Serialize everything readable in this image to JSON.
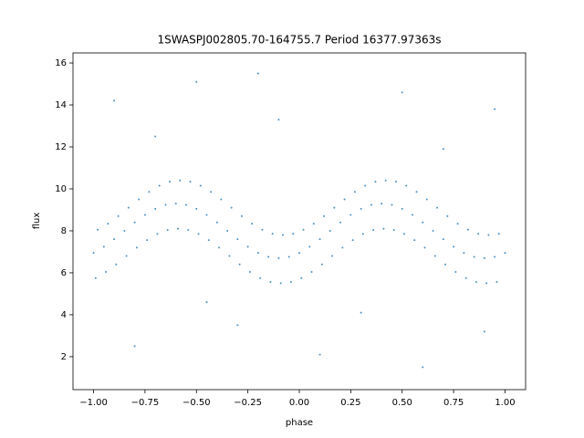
{
  "chart_data": {
    "type": "scatter",
    "title": "1SWASPJ002805.70-164755.7 Period 16377.97363s",
    "xlabel": "phase",
    "ylabel": "flux",
    "color": "#1f77b4",
    "xlim": [
      -1.1,
      1.1
    ],
    "ylim": [
      0.43,
      16.48
    ],
    "xticks": [
      {
        "value": -1,
        "label": "−1.00"
      },
      {
        "value": -0.75,
        "label": "−0.75"
      },
      {
        "value": -0.5,
        "label": "−0.50"
      },
      {
        "value": -0.25,
        "label": "−0.25"
      },
      {
        "value": 0,
        "label": "0.00"
      },
      {
        "value": 0.25,
        "label": "0.25"
      },
      {
        "value": 0.5,
        "label": "0.50"
      },
      {
        "value": 0.75,
        "label": "0.75"
      },
      {
        "value": 1,
        "label": "1.00"
      }
    ],
    "yticks": [
      2,
      4,
      6,
      8,
      10,
      12,
      14,
      16
    ],
    "x": [
      -1,
      -0.95,
      -0.9,
      -0.85,
      -0.8,
      -0.75,
      -0.7,
      -0.65,
      -0.6,
      -0.55,
      -0.5,
      -0.45,
      -0.4,
      -0.35,
      -0.3,
      -0.25,
      -0.2,
      -0.15,
      -0.1,
      -0.05,
      0,
      0.05,
      0.1,
      0.15,
      0.2,
      0.25,
      0.3,
      0.35,
      0.4,
      0.45,
      0.5,
      0.55,
      0.6,
      0.65,
      0.7,
      0.75,
      0.8,
      0.85,
      0.9,
      0.95,
      1,
      -0.98,
      -0.93,
      -0.88,
      -0.83,
      -0.78,
      -0.73,
      -0.68,
      -0.63,
      -0.58,
      -0.53,
      -0.48,
      -0.43,
      -0.38,
      -0.33,
      -0.28,
      -0.23,
      -0.18,
      -0.13,
      -0.08,
      -0.03,
      0.02,
      0.07,
      0.12,
      0.17,
      0.22,
      0.27,
      0.32,
      0.37,
      0.42,
      0.47,
      0.52,
      0.57,
      0.62,
      0.67,
      0.72,
      0.77,
      0.82,
      0.87,
      0.92,
      0.97,
      -0.99,
      -0.94,
      -0.89,
      -0.84,
      -0.79,
      -0.74,
      -0.69,
      -0.64,
      -0.59,
      -0.54,
      -0.49,
      -0.44,
      -0.39,
      -0.34,
      -0.29,
      -0.24,
      -0.19,
      -0.14,
      -0.09,
      -0.04,
      0.01,
      0.06,
      0.11,
      0.16,
      0.21,
      0.26,
      0.31,
      0.36,
      0.41,
      0.46,
      0.51,
      0.56,
      0.61,
      0.66,
      0.71,
      0.76,
      0.81,
      0.86,
      0.91,
      0.96,
      -0.9,
      -0.7,
      -0.5,
      -0.3,
      -0.1,
      0.1,
      0.3,
      0.5,
      0.7,
      0.9,
      -0.8,
      0.6,
      -0.2,
      0.95,
      -0.45
    ],
    "y": [
      6.95,
      7.24,
      7.6,
      8.0,
      8.4,
      8.76,
      9.05,
      9.24,
      9.3,
      9.24,
      9.05,
      8.76,
      8.4,
      8.0,
      7.6,
      7.24,
      6.95,
      6.76,
      6.7,
      6.76,
      6.95,
      7.24,
      7.6,
      8.0,
      8.4,
      8.76,
      9.05,
      9.24,
      9.3,
      9.24,
      9.05,
      8.76,
      8.4,
      8.0,
      7.6,
      7.24,
      6.95,
      6.76,
      6.7,
      6.76,
      6.95,
      8.05,
      8.34,
      8.7,
      9.1,
      9.5,
      9.86,
      10.15,
      10.34,
      10.4,
      10.34,
      10.15,
      9.86,
      9.5,
      9.1,
      8.7,
      8.34,
      8.05,
      7.86,
      7.8,
      7.86,
      8.05,
      8.34,
      8.7,
      9.1,
      9.5,
      9.86,
      10.15,
      10.34,
      10.4,
      10.34,
      10.15,
      9.86,
      9.5,
      9.1,
      8.7,
      8.34,
      8.05,
      7.86,
      7.8,
      7.86,
      5.75,
      6.04,
      6.4,
      6.8,
      7.2,
      7.56,
      7.85,
      8.04,
      8.1,
      8.04,
      7.85,
      7.56,
      7.2,
      6.8,
      6.4,
      6.04,
      5.75,
      5.56,
      5.5,
      5.56,
      5.75,
      6.04,
      6.4,
      6.8,
      7.2,
      7.56,
      7.85,
      8.04,
      8.1,
      8.04,
      7.85,
      7.56,
      7.2,
      6.8,
      6.4,
      6.04,
      5.75,
      5.56,
      5.5,
      5.56,
      14.2,
      12.5,
      15.1,
      3.5,
      13.3,
      2.1,
      4.1,
      14.6,
      11.9,
      3.2,
      2.5,
      1.5,
      15.5,
      13.8,
      4.6
    ]
  }
}
